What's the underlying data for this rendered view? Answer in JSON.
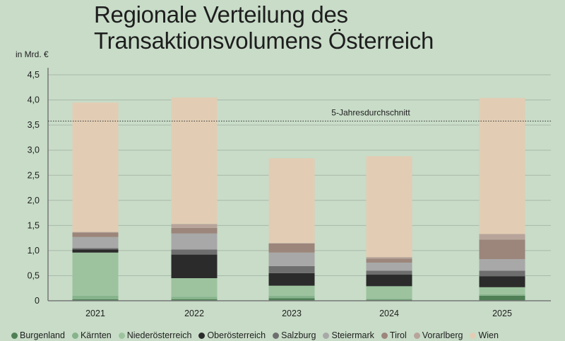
{
  "chart_data": {
    "type": "bar",
    "stacked": true,
    "title": "Regionale Verteilung des Transaktionsvolumens Österreich",
    "ylabel": "in Mrd. €",
    "xlabel": "",
    "ylim": [
      0,
      4.5
    ],
    "yticks": [
      "0",
      "0,5",
      "1,0",
      "1,5",
      "2,0",
      "2,5",
      "3,0",
      "3,5",
      "4,0",
      "4,5"
    ],
    "ytick_values": [
      0,
      0.5,
      1.0,
      1.5,
      2.0,
      2.5,
      3.0,
      3.5,
      4.0,
      4.5
    ],
    "grid": true,
    "legend_position": "bottom",
    "categories": [
      "2021",
      "2022",
      "2023",
      "2024",
      "2025"
    ],
    "series": [
      {
        "name": "Burgenland",
        "color": "#4e7f55",
        "values": [
          0.03,
          0.03,
          0.05,
          0.02,
          0.1
        ]
      },
      {
        "name": "Kärnten",
        "color": "#86b38b",
        "values": [
          0.07,
          0.05,
          0.05,
          0.02,
          0.03
        ]
      },
      {
        "name": "Niederösterreich",
        "color": "#9cc39e",
        "values": [
          0.86,
          0.37,
          0.2,
          0.25,
          0.14
        ]
      },
      {
        "name": "Oberösterreich",
        "color": "#2b2b2b",
        "values": [
          0.06,
          0.47,
          0.25,
          0.23,
          0.22
        ]
      },
      {
        "name": "Salzburg",
        "color": "#6e6e6e",
        "values": [
          0.03,
          0.1,
          0.14,
          0.08,
          0.11
        ]
      },
      {
        "name": "Steiermark",
        "color": "#a8a8a8",
        "values": [
          0.22,
          0.32,
          0.27,
          0.16,
          0.23
        ]
      },
      {
        "name": "Tirol",
        "color": "#9c857b",
        "values": [
          0.09,
          0.11,
          0.18,
          0.08,
          0.39
        ]
      },
      {
        "name": "Vorarlberg",
        "color": "#b8a49a",
        "values": [
          0.01,
          0.08,
          0.01,
          0.03,
          0.11
        ]
      },
      {
        "name": "Wien",
        "color": "#e2cdb4",
        "values": [
          2.58,
          2.52,
          1.69,
          2.01,
          2.71
        ]
      }
    ],
    "reference_line": {
      "label": "5-Jahresdurchschnitt",
      "value": 3.58
    }
  }
}
